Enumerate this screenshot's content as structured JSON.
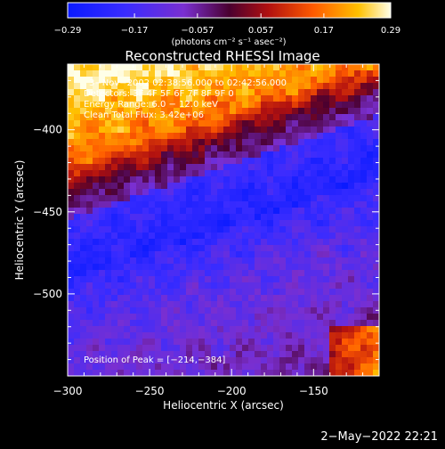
{
  "chart_data": {
    "type": "heatmap",
    "title": "Reconstructed RHESSI Image",
    "xlabel": "Heliocentric X (arcsec)",
    "ylabel": "Heliocentric Y (arcsec)",
    "xlim": [
      -300,
      -110
    ],
    "ylim": [
      -550,
      -360
    ],
    "x_ticks": [
      -300,
      -250,
      -200,
      -150
    ],
    "y_ticks": [
      -400,
      -450,
      -500
    ],
    "x_tick_labels": [
      "−300",
      "−250",
      "−200",
      "−150"
    ],
    "y_tick_labels": [
      "−400",
      "−450",
      "−500"
    ],
    "colorbar": {
      "min": -0.29,
      "max": 0.29,
      "ticks": [
        -0.29,
        -0.17,
        -0.057,
        0.057,
        0.17,
        0.29
      ],
      "tick_labels": [
        "−0.29",
        "−0.17",
        "−0.057",
        "0.057",
        "0.17",
        "0.29"
      ],
      "units_label": "(photons cm⁻² s⁻¹ asec⁻²)"
    },
    "annotations": {
      "time": "3−Nov−2002 02:38:56.000 to 02:42:56.000",
      "detectors": "Detectors: 3F 4F 5F 6F 7F 8F 9F 0",
      "energy": "Energy Range: 6.0 − 12.0 keV",
      "method": "Clean     Total Flux: 3.42e+06",
      "peak": "Position of Peak = [−214,−384]"
    },
    "peak_position": [
      -214,
      -384
    ]
  },
  "footer": {
    "timestamp": "2−May−2022 22:21"
  }
}
